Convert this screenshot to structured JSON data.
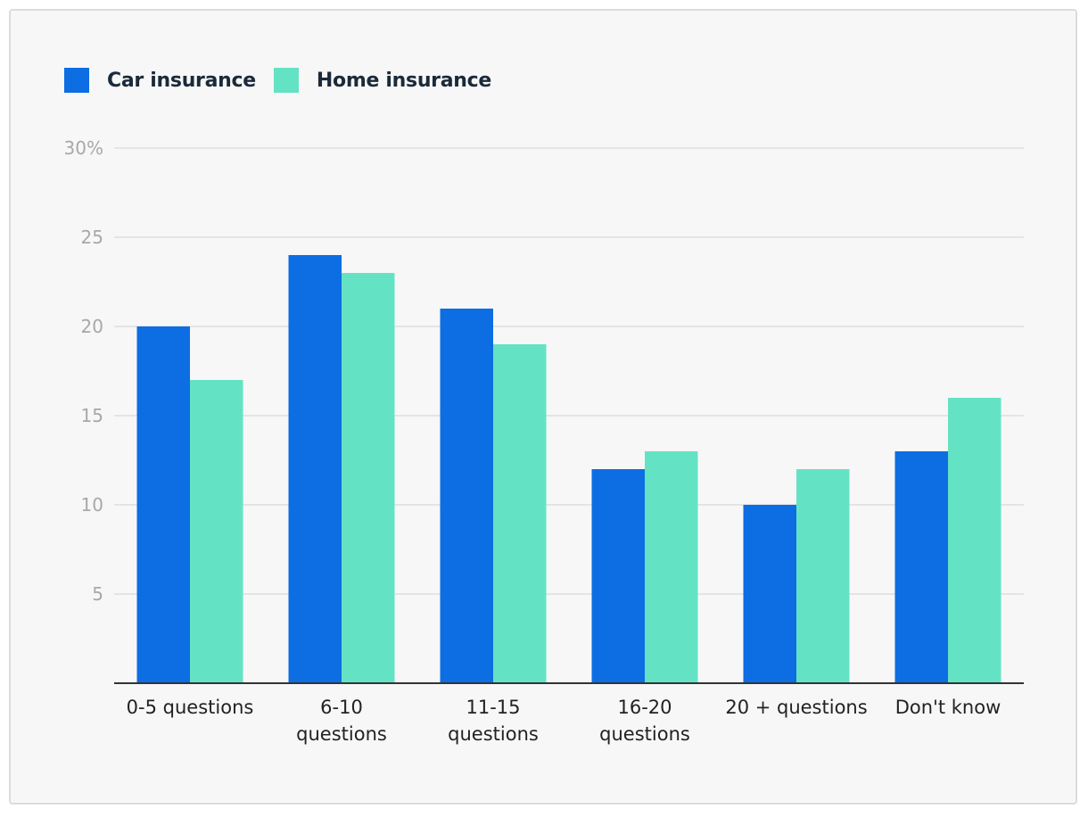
{
  "legend": [
    {
      "label": "Car insurance",
      "color": "#0d6de3"
    },
    {
      "label": "Home insurance",
      "color": "#64e3c4"
    }
  ],
  "chart_data": {
    "type": "bar",
    "categories": [
      [
        "0-5 questions"
      ],
      [
        "6-10",
        "questions"
      ],
      [
        "11-15",
        "questions"
      ],
      [
        "16-20",
        "questions"
      ],
      [
        "20 + questions"
      ],
      [
        "Don't know"
      ]
    ],
    "series": [
      {
        "name": "Car insurance",
        "color": "#0d6de3",
        "values": [
          20,
          24,
          21,
          12,
          10,
          13
        ]
      },
      {
        "name": "Home insurance",
        "color": "#64e3c4",
        "values": [
          17,
          23,
          19,
          13,
          12,
          16
        ]
      }
    ],
    "ylim": [
      0,
      30
    ],
    "yticks": [
      5,
      10,
      15,
      20,
      25,
      30
    ],
    "ytick_labels": [
      "5",
      "10",
      "15",
      "20",
      "25",
      "30%"
    ],
    "grid": true,
    "legend_position": "top-left"
  }
}
